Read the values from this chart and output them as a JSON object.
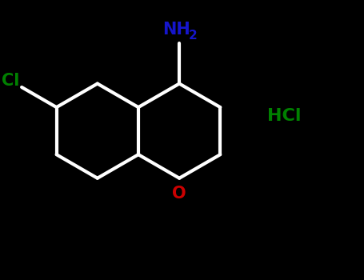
{
  "background_color": "#000000",
  "bond_color": "#ffffff",
  "bond_width": 3.0,
  "nh2_color": "#1515cc",
  "cl_color": "#008000",
  "hcl_color": "#008000",
  "o_color": "#cc0000",
  "nh2_label": "NH",
  "nh2_sub": "2",
  "cl_label": "Cl",
  "hcl_label": "HCl",
  "o_label": "O",
  "figsize": [
    4.55,
    3.5
  ],
  "dpi": 100,
  "xlim": [
    0,
    10
  ],
  "ylim": [
    0,
    7.7
  ]
}
